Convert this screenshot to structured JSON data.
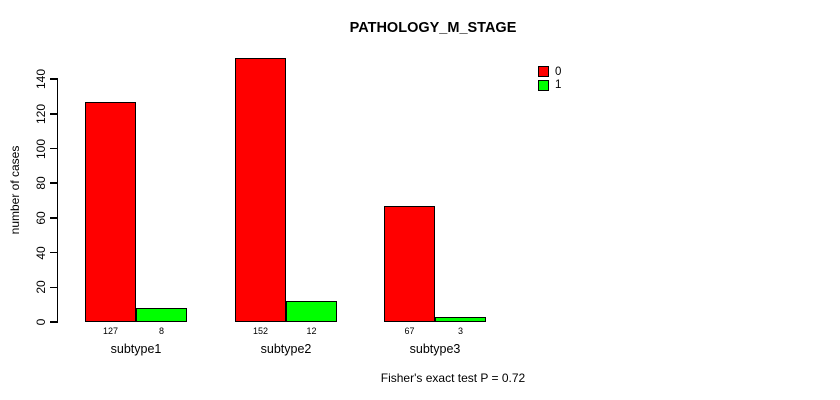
{
  "title": "PATHOLOGY_M_STAGE",
  "ylabel": "number of cases",
  "footer": "Fisher's exact test P = 0.72",
  "colors": {
    "series0": "#ff0000",
    "series1": "#00ff00",
    "axis": "#000000",
    "background": "#ffffff"
  },
  "legend": [
    {
      "label": "0",
      "color": "#ff0000"
    },
    {
      "label": "1",
      "color": "#00ff00"
    }
  ],
  "chart_data": {
    "type": "bar",
    "title": "PATHOLOGY_M_STAGE",
    "categories": [
      "subtype1",
      "subtype2",
      "subtype3"
    ],
    "series": [
      {
        "name": "0",
        "color": "#ff0000",
        "values": [
          127,
          152,
          67
        ]
      },
      {
        "name": "1",
        "color": "#00ff00",
        "values": [
          8,
          12,
          3
        ]
      }
    ],
    "xlabel": "",
    "ylabel": "number of cases",
    "yticks": [
      0,
      20,
      40,
      60,
      80,
      100,
      120,
      140
    ],
    "ylim": [
      0,
      152
    ],
    "grid": false,
    "legend_position": "top-right",
    "bar_value_labels": true,
    "annotation": "Fisher's exact test P = 0.72"
  }
}
